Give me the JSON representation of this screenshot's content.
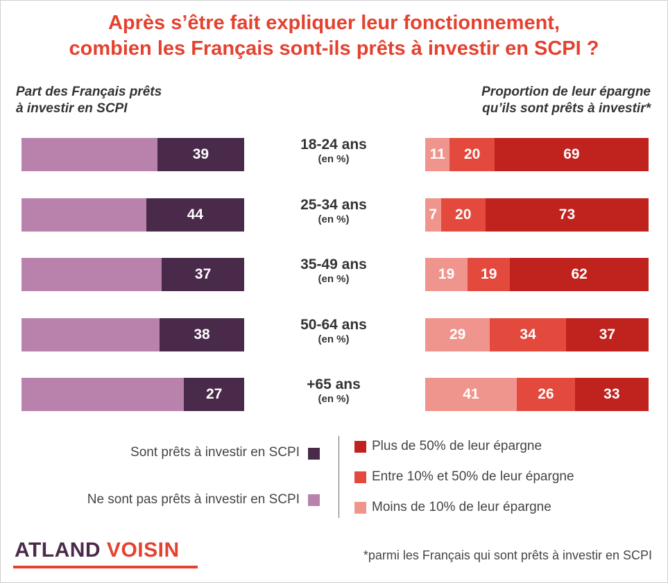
{
  "title_line1": "Après s’être fait expliquer leur fonctionnement,",
  "title_line2": "combien les Français sont-ils prêts à investir en SCPI ?",
  "left_panel_label_line1": "Part des Français prêts",
  "left_panel_label_line2": "à investir en SCPI",
  "right_panel_label_line1": "Proportion de leur épargne",
  "right_panel_label_line2": "qu’ils sont prêts à investir*",
  "colors": {
    "title": "#e4412f",
    "ready": "#4a2a4a",
    "not_ready": "#b882ad",
    "more_50": "#c0221e",
    "between_10_50": "#e34a3d",
    "less_10": "#f0958d"
  },
  "chart_data": [
    {
      "type": "bar",
      "orientation": "horizontal",
      "stacked": true,
      "categories": [
        "18-24 ans",
        "25-34 ans",
        "35-49 ans",
        "50-64 ans",
        "+65 ans"
      ],
      "unit": "(en %)",
      "series": [
        {
          "name": "Sont prêts à investir en SCPI",
          "values": [
            39,
            44,
            37,
            38,
            27
          ]
        },
        {
          "name": "Ne sont pas prêts à investir en SCPI",
          "values": [
            61,
            56,
            63,
            62,
            73
          ]
        }
      ],
      "xlim": [
        0,
        100
      ]
    },
    {
      "type": "bar",
      "orientation": "horizontal",
      "stacked": true,
      "categories": [
        "18-24 ans",
        "25-34 ans",
        "35-49 ans",
        "50-64 ans",
        "+65 ans"
      ],
      "unit": "(en %)",
      "series": [
        {
          "name": "Moins de 10% de leur épargne",
          "values": [
            11,
            7,
            19,
            29,
            41
          ]
        },
        {
          "name": "Entre 10% et 50% de leur épargne",
          "values": [
            20,
            20,
            19,
            34,
            26
          ]
        },
        {
          "name": "Plus de 50% de leur épargne",
          "values": [
            69,
            73,
            62,
            37,
            33
          ]
        }
      ],
      "xlim": [
        0,
        100
      ]
    }
  ],
  "legend_left": [
    {
      "label": "Sont prêts à investir en SCPI"
    },
    {
      "label": "Ne sont pas prêts à investir en SCPI"
    }
  ],
  "legend_right": [
    {
      "label": "Plus de 50% de leur épargne"
    },
    {
      "label": "Entre 10% et 50% de leur épargne"
    },
    {
      "label": "Moins de 10% de leur épargne"
    }
  ],
  "logo": {
    "part1": "ATLAND",
    "part2": " VOISIN"
  },
  "footnote": "*parmi les Français qui sont prêts à investir en SCPI"
}
